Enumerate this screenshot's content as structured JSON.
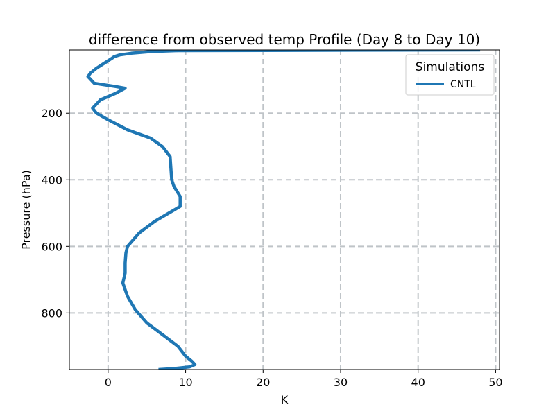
{
  "chart_data": {
    "type": "line",
    "title": "difference from observed temp Profile (Day 8 to Day 10)",
    "xlabel": "K",
    "ylabel": "Pressure (hPa)",
    "xlim": [
      -5,
      50.5
    ],
    "ylim": [
      970,
      10
    ],
    "y_inverted": true,
    "xticks": [
      0,
      10,
      20,
      30,
      40,
      50
    ],
    "yticks": [
      200,
      400,
      600,
      800
    ],
    "grid": true,
    "legend": {
      "title": "Simulations",
      "placement": "top-right"
    },
    "series": [
      {
        "name": "CNTL",
        "color": "#1f77b4",
        "points": [
          {
            "x": 48,
            "y": 10
          },
          {
            "x": 9,
            "y": 12
          },
          {
            "x": 5.5,
            "y": 15
          },
          {
            "x": 3,
            "y": 20
          },
          {
            "x": 1.5,
            "y": 25
          },
          {
            "x": 0.8,
            "y": 30
          },
          {
            "x": 0.5,
            "y": 35
          },
          {
            "x": -0.5,
            "y": 50
          },
          {
            "x": -1.5,
            "y": 65
          },
          {
            "x": -2.3,
            "y": 80
          },
          {
            "x": -2.6,
            "y": 90
          },
          {
            "x": -2.2,
            "y": 100
          },
          {
            "x": -1.8,
            "y": 110
          },
          {
            "x": 1,
            "y": 120
          },
          {
            "x": 2.2,
            "y": 125
          },
          {
            "x": 1,
            "y": 140
          },
          {
            "x": -1,
            "y": 160
          },
          {
            "x": -2,
            "y": 185
          },
          {
            "x": -1.5,
            "y": 200
          },
          {
            "x": 0,
            "y": 220
          },
          {
            "x": 2.5,
            "y": 250
          },
          {
            "x": 5.5,
            "y": 275
          },
          {
            "x": 7,
            "y": 300
          },
          {
            "x": 8,
            "y": 330
          },
          {
            "x": 8.2,
            "y": 400
          },
          {
            "x": 8.5,
            "y": 420
          },
          {
            "x": 9.3,
            "y": 450
          },
          {
            "x": 9.3,
            "y": 480
          },
          {
            "x": 6,
            "y": 525
          },
          {
            "x": 4,
            "y": 560
          },
          {
            "x": 2.5,
            "y": 600
          },
          {
            "x": 2.3,
            "y": 620
          },
          {
            "x": 2.2,
            "y": 650
          },
          {
            "x": 2.2,
            "y": 680
          },
          {
            "x": 1.9,
            "y": 710
          },
          {
            "x": 2.5,
            "y": 750
          },
          {
            "x": 3.5,
            "y": 790
          },
          {
            "x": 5,
            "y": 830
          },
          {
            "x": 7,
            "y": 865
          },
          {
            "x": 9,
            "y": 900
          },
          {
            "x": 10,
            "y": 930
          },
          {
            "x": 10.8,
            "y": 945
          },
          {
            "x": 11.2,
            "y": 955
          },
          {
            "x": 10.5,
            "y": 962
          },
          {
            "x": 8.5,
            "y": 967
          },
          {
            "x": 6.5,
            "y": 970
          }
        ]
      }
    ]
  }
}
